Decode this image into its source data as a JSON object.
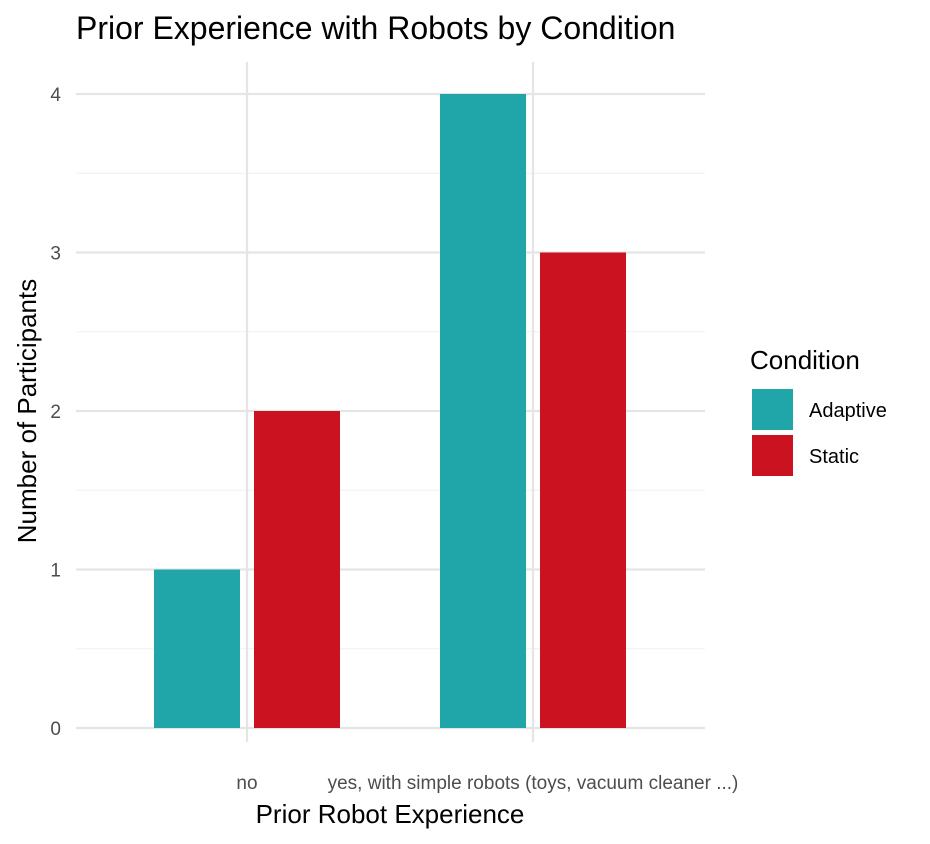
{
  "chart_data": {
    "type": "bar",
    "title": "Prior Experience with Robots by Condition",
    "xlabel": "Prior Robot Experience",
    "ylabel": "Number of Participants",
    "categories": [
      "no",
      "yes, with simple robots (toys, vacuum cleaner ...)"
    ],
    "series": [
      {
        "name": "Adaptive",
        "values": [
          1,
          4
        ],
        "color": "#20A6A9"
      },
      {
        "name": "Static",
        "values": [
          2,
          3
        ],
        "color": "#CB1220"
      }
    ],
    "ylim": [
      0,
      4
    ],
    "yticks": [
      0,
      1,
      2,
      3,
      4
    ],
    "grid": true,
    "legend": {
      "title": "Condition",
      "position": "right"
    }
  }
}
